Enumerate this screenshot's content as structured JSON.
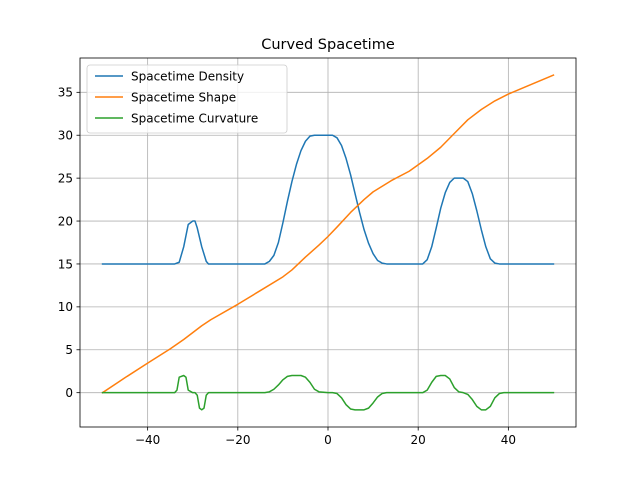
{
  "chart_data": {
    "type": "line",
    "title": "Curved Spacetime",
    "xlabel": "",
    "ylabel": "",
    "xlim": [
      -55,
      55
    ],
    "ylim": [
      -4,
      39
    ],
    "xticks": [
      -40,
      -20,
      0,
      20,
      40
    ],
    "yticks": [
      0,
      5,
      10,
      15,
      20,
      25,
      30,
      35
    ],
    "grid": true,
    "legend_position": "top-left",
    "series": [
      {
        "name": "Spacetime Density",
        "color": "#1f77b4",
        "points": [
          [
            -50,
            15
          ],
          [
            -34,
            15
          ],
          [
            -33,
            15.2
          ],
          [
            -32,
            17
          ],
          [
            -31,
            19.6
          ],
          [
            -30,
            20
          ],
          [
            -29.5,
            20
          ],
          [
            -29,
            19.2
          ],
          [
            -28,
            17
          ],
          [
            -27,
            15.3
          ],
          [
            -26.5,
            15
          ],
          [
            -14,
            15
          ],
          [
            -13,
            15.3
          ],
          [
            -12,
            16
          ],
          [
            -11,
            17.5
          ],
          [
            -10,
            19.8
          ],
          [
            -9,
            22.3
          ],
          [
            -8,
            24.6
          ],
          [
            -7,
            26.6
          ],
          [
            -6,
            28.2
          ],
          [
            -5,
            29.3
          ],
          [
            -4,
            29.9
          ],
          [
            -3,
            30
          ],
          [
            0,
            30
          ],
          [
            1,
            30
          ],
          [
            2,
            29.7
          ],
          [
            3,
            28.8
          ],
          [
            4,
            27.3
          ],
          [
            5,
            25.4
          ],
          [
            6,
            23.2
          ],
          [
            7,
            21
          ],
          [
            8,
            19
          ],
          [
            9,
            17.4
          ],
          [
            10,
            16.2
          ],
          [
            11,
            15.4
          ],
          [
            12,
            15.1
          ],
          [
            13,
            15
          ],
          [
            21,
            15
          ],
          [
            22,
            15.5
          ],
          [
            23,
            17
          ],
          [
            24,
            19.2
          ],
          [
            25,
            21.5
          ],
          [
            26,
            23.3
          ],
          [
            27,
            24.5
          ],
          [
            28,
            25
          ],
          [
            30,
            25
          ],
          [
            31,
            24.6
          ],
          [
            32,
            23.2
          ],
          [
            33,
            21.2
          ],
          [
            34,
            19
          ],
          [
            35,
            17
          ],
          [
            36,
            15.6
          ],
          [
            37,
            15.1
          ],
          [
            38,
            15
          ],
          [
            50,
            15
          ]
        ]
      },
      {
        "name": "Spacetime Shape",
        "color": "#ff7f0e",
        "points": [
          [
            -50,
            0
          ],
          [
            -45,
            1.75
          ],
          [
            -40,
            3.45
          ],
          [
            -35,
            5.1
          ],
          [
            -32,
            6.2
          ],
          [
            -30,
            7
          ],
          [
            -28,
            7.8
          ],
          [
            -26,
            8.5
          ],
          [
            -20,
            10.3
          ],
          [
            -15,
            11.9
          ],
          [
            -10,
            13.5
          ],
          [
            -8,
            14.3
          ],
          [
            -5,
            15.8
          ],
          [
            -2,
            17.2
          ],
          [
            0,
            18.2
          ],
          [
            2,
            19.3
          ],
          [
            5,
            21
          ],
          [
            8,
            22.5
          ],
          [
            10,
            23.4
          ],
          [
            14,
            24.7
          ],
          [
            18,
            25.8
          ],
          [
            22,
            27.3
          ],
          [
            25,
            28.6
          ],
          [
            28,
            30.2
          ],
          [
            31,
            31.8
          ],
          [
            34,
            33
          ],
          [
            37,
            34
          ],
          [
            40,
            34.8
          ],
          [
            45,
            35.9
          ],
          [
            50,
            37
          ]
        ]
      },
      {
        "name": "Spacetime Curvature",
        "color": "#2ca02c",
        "points": [
          [
            -50,
            0
          ],
          [
            -34,
            0
          ],
          [
            -33.5,
            0.3
          ],
          [
            -33,
            1.8
          ],
          [
            -32,
            2
          ],
          [
            -31.5,
            1.8
          ],
          [
            -31,
            0.3
          ],
          [
            -30,
            0
          ],
          [
            -29.5,
            0
          ],
          [
            -29,
            -0.3
          ],
          [
            -28.5,
            -1.8
          ],
          [
            -28,
            -2
          ],
          [
            -27.5,
            -1.8
          ],
          [
            -27,
            -0.3
          ],
          [
            -26.5,
            0
          ],
          [
            -14,
            0
          ],
          [
            -13,
            0.1
          ],
          [
            -12,
            0.4
          ],
          [
            -11,
            0.9
          ],
          [
            -10,
            1.5
          ],
          [
            -9,
            1.9
          ],
          [
            -8,
            2
          ],
          [
            -6,
            2
          ],
          [
            -5,
            1.8
          ],
          [
            -4,
            1.2
          ],
          [
            -3,
            0.4
          ],
          [
            -2,
            0.1
          ],
          [
            0,
            0
          ],
          [
            1,
            0
          ],
          [
            2,
            -0.1
          ],
          [
            3,
            -0.6
          ],
          [
            4,
            -1.4
          ],
          [
            5,
            -1.9
          ],
          [
            6,
            -2
          ],
          [
            8,
            -2
          ],
          [
            9,
            -1.8
          ],
          [
            10,
            -1.2
          ],
          [
            11,
            -0.5
          ],
          [
            12,
            -0.1
          ],
          [
            13,
            0
          ],
          [
            21,
            0
          ],
          [
            22,
            0.3
          ],
          [
            23,
            1.2
          ],
          [
            24,
            1.9
          ],
          [
            25,
            2
          ],
          [
            26,
            2
          ],
          [
            27,
            1.6
          ],
          [
            28,
            0.6
          ],
          [
            29,
            0.1
          ],
          [
            30,
            0
          ],
          [
            31,
            -0.2
          ],
          [
            32,
            -0.8
          ],
          [
            33,
            -1.6
          ],
          [
            34,
            -2
          ],
          [
            35,
            -2
          ],
          [
            36,
            -1.6
          ],
          [
            37,
            -0.6
          ],
          [
            38,
            -0.1
          ],
          [
            39,
            0
          ],
          [
            50,
            0
          ]
        ]
      }
    ]
  }
}
